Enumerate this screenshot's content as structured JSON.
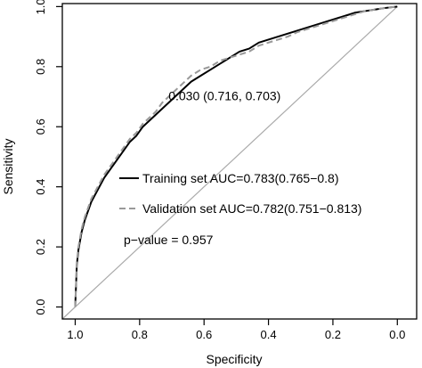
{
  "chart_data": {
    "type": "line",
    "title": "",
    "xlabel": "Specificity",
    "ylabel": "Sensitivity",
    "xlim": [
      1.04,
      -0.06
    ],
    "ylim": [
      -0.04,
      1.01
    ],
    "x_reversed": true,
    "xticks": [
      1.0,
      0.8,
      0.6,
      0.4,
      0.2,
      0.0
    ],
    "xtick_labels": [
      "1.0",
      "0.8",
      "0.6",
      "0.4",
      "0.2",
      "0.0"
    ],
    "yticks": [
      0.0,
      0.2,
      0.4,
      0.6,
      0.8,
      1.0
    ],
    "ytick_labels": [
      "0.0",
      "0.2",
      "0.4",
      "0.6",
      "0.8",
      "1.0"
    ],
    "grid": false,
    "reference_line": {
      "points": [
        [
          1.04,
          -0.04
        ],
        [
          0.0,
          1.0
        ]
      ],
      "color": "#aaaaaa"
    },
    "series": [
      {
        "name": "Training set AUC=0.783(0.765−0.8)",
        "color": "#000000",
        "dash": "solid",
        "x": [
          1.0,
          0.995,
          0.99,
          0.985,
          0.98,
          0.97,
          0.96,
          0.95,
          0.93,
          0.91,
          0.89,
          0.87,
          0.85,
          0.83,
          0.81,
          0.79,
          0.77,
          0.75,
          0.73,
          0.71,
          0.69,
          0.67,
          0.64,
          0.61,
          0.58,
          0.55,
          0.52,
          0.49,
          0.46,
          0.43,
          0.4,
          0.37,
          0.34,
          0.31,
          0.28,
          0.25,
          0.22,
          0.19,
          0.16,
          0.13,
          0.1,
          0.07,
          0.04,
          0.0
        ],
        "y": [
          0.0,
          0.14,
          0.19,
          0.22,
          0.25,
          0.29,
          0.32,
          0.35,
          0.39,
          0.43,
          0.46,
          0.49,
          0.52,
          0.55,
          0.57,
          0.6,
          0.62,
          0.64,
          0.66,
          0.68,
          0.7,
          0.72,
          0.75,
          0.77,
          0.79,
          0.81,
          0.83,
          0.85,
          0.86,
          0.88,
          0.89,
          0.9,
          0.91,
          0.92,
          0.93,
          0.94,
          0.95,
          0.96,
          0.97,
          0.98,
          0.985,
          0.99,
          0.995,
          1.0
        ]
      },
      {
        "name": "Validation set AUC=0.782(0.751−0.813)",
        "color": "#999999",
        "dash": "dashed",
        "x": [
          1.0,
          0.995,
          0.99,
          0.985,
          0.98,
          0.97,
          0.96,
          0.95,
          0.93,
          0.91,
          0.89,
          0.87,
          0.85,
          0.83,
          0.81,
          0.79,
          0.77,
          0.75,
          0.73,
          0.71,
          0.69,
          0.67,
          0.64,
          0.61,
          0.58,
          0.55,
          0.52,
          0.49,
          0.46,
          0.43,
          0.4,
          0.37,
          0.34,
          0.31,
          0.28,
          0.25,
          0.22,
          0.19,
          0.16,
          0.13,
          0.1,
          0.07,
          0.04,
          0.0
        ],
        "y": [
          0.0,
          0.15,
          0.2,
          0.23,
          0.26,
          0.3,
          0.33,
          0.36,
          0.4,
          0.44,
          0.47,
          0.5,
          0.53,
          0.56,
          0.58,
          0.61,
          0.63,
          0.65,
          0.68,
          0.7,
          0.72,
          0.74,
          0.77,
          0.79,
          0.8,
          0.82,
          0.83,
          0.84,
          0.85,
          0.87,
          0.88,
          0.89,
          0.9,
          0.915,
          0.925,
          0.935,
          0.945,
          0.955,
          0.965,
          0.975,
          0.985,
          0.99,
          0.995,
          1.0
        ]
      }
    ],
    "cutoff_point": {
      "x": 0.716,
      "y": 0.703,
      "label": "0.030 (0.716, 0.703)"
    },
    "legend": {
      "placement": "center",
      "entries": [
        "Training set AUC=0.783(0.765−0.8)",
        "Validation set AUC=0.782(0.751−0.813)"
      ]
    },
    "annotation": "p−value = 0.957"
  }
}
